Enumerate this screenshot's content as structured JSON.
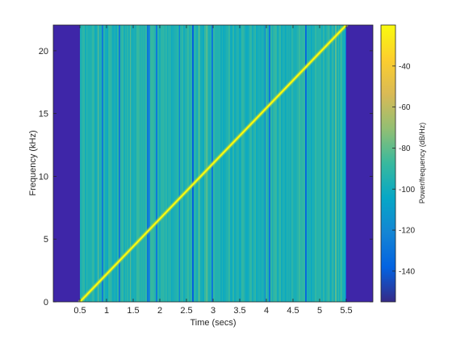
{
  "chart_data": {
    "type": "heatmap",
    "subtype": "spectrogram",
    "title": "",
    "xlabel": "Time (secs)",
    "ylabel": "Frequency (kHz)",
    "xlim": [
      0,
      6.0
    ],
    "ylim": [
      0,
      22.05
    ],
    "x_ticks": [
      0.5,
      1,
      1.5,
      2,
      2.5,
      3,
      3.5,
      4,
      4.5,
      5,
      5.5
    ],
    "x_tick_labels": [
      "0.5",
      "1",
      "1.5",
      "2",
      "2.5",
      "3",
      "3.5",
      "4",
      "4.5",
      "5",
      "5.5"
    ],
    "y_ticks": [
      0,
      5,
      10,
      15,
      20
    ],
    "y_tick_labels": [
      "0",
      "5",
      "10",
      "15",
      "20"
    ],
    "data_time_range": [
      0.5,
      5.5
    ],
    "background_level": -95,
    "outside_data_color": "#3e26a8",
    "chirp": {
      "description": "linear frequency sweep",
      "start": {
        "time": 0.5,
        "frequency_khz": 0
      },
      "end": {
        "time": 5.5,
        "frequency_khz": 22.05
      },
      "level": -20
    },
    "colorbar": {
      "label": "Power/frequency (dB/Hz)",
      "colormap": "parula",
      "range": [
        -155,
        -20
      ],
      "ticks": [
        -40,
        -60,
        -80,
        -100,
        -120,
        -140
      ],
      "tick_labels": [
        "-40",
        "-60",
        "-80",
        "-100",
        "-120",
        "-140"
      ]
    },
    "grid": false,
    "legend": "none"
  }
}
